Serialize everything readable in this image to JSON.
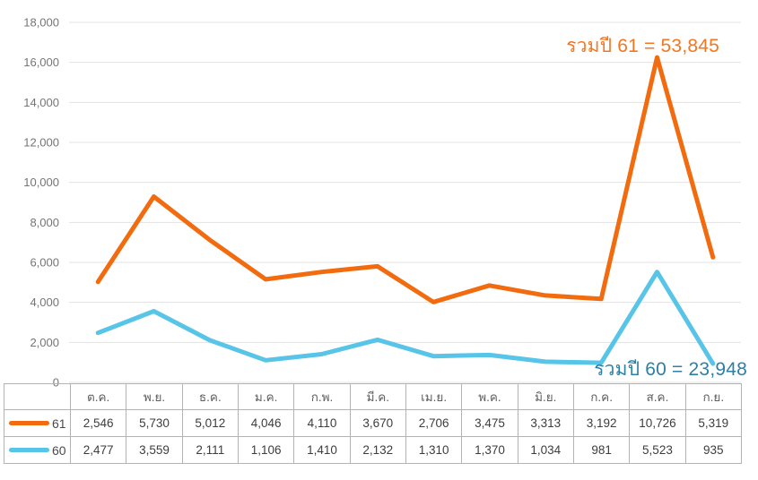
{
  "chart_data": {
    "type": "line",
    "stacked": true,
    "title": "",
    "xlabel": "",
    "ylabel": "",
    "ylim": [
      0,
      18000
    ],
    "ytick_interval": 2000,
    "grid": true,
    "legend_position": "table-left",
    "categories": [
      "ต.ค.",
      "พ.ย.",
      "ธ.ค.",
      "ม.ค.",
      "ก.พ.",
      "มี.ค.",
      "เม.ย.",
      "พ.ค.",
      "มิ.ย.",
      "ก.ค.",
      "ส.ค.",
      "ก.ย."
    ],
    "series": [
      {
        "name": "61",
        "color": "#f26b0e",
        "values": [
          2546,
          5730,
          5012,
          4046,
          4110,
          3670,
          2706,
          3475,
          3313,
          3192,
          10726,
          5319
        ]
      },
      {
        "name": "60",
        "color": "#58c5e8",
        "values": [
          2477,
          3559,
          2111,
          1106,
          1410,
          2132,
          1310,
          1370,
          1034,
          981,
          5523,
          935
        ]
      }
    ],
    "annotations": [
      {
        "id": "total-61",
        "text": "รวมปี 61 = 53,845",
        "color": "#f5761f"
      },
      {
        "id": "total-60",
        "text": "รวมปี 60 = 23,948",
        "color": "#2d7fa4"
      }
    ]
  },
  "styles": {
    "gridline_color": "#e3e3e3",
    "axis_label_color": "#757575",
    "table_border_color": "#b3b3b3"
  }
}
